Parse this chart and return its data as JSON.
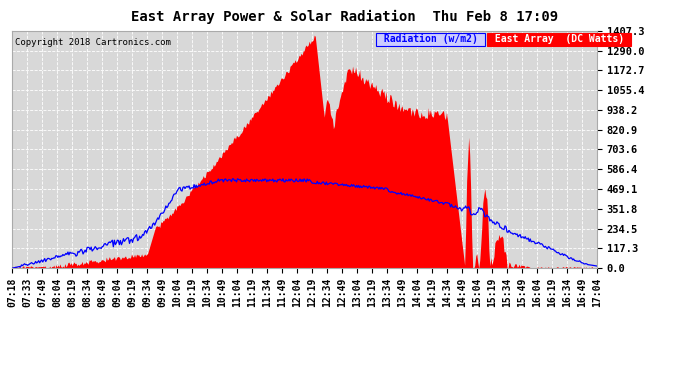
{
  "title": "East Array Power & Solar Radiation  Thu Feb 8 17:09",
  "copyright": "Copyright 2018 Cartronics.com",
  "y_ticks": [
    0.0,
    117.3,
    234.5,
    351.8,
    469.1,
    586.4,
    703.6,
    820.9,
    938.2,
    1055.4,
    1172.7,
    1290.0,
    1407.3
  ],
  "ylim": [
    0,
    1407.3
  ],
  "background_color": "#ffffff",
  "plot_bg_color": "#d8d8d8",
  "grid_color": "#ffffff",
  "x_tick_labels": [
    "07:18",
    "07:33",
    "07:49",
    "08:04",
    "08:19",
    "08:34",
    "08:49",
    "09:04",
    "09:19",
    "09:34",
    "09:49",
    "10:04",
    "10:19",
    "10:34",
    "10:49",
    "11:04",
    "11:19",
    "11:34",
    "11:49",
    "12:04",
    "12:19",
    "12:34",
    "12:49",
    "13:04",
    "13:19",
    "13:34",
    "13:49",
    "14:04",
    "14:19",
    "14:34",
    "14:49",
    "15:04",
    "15:19",
    "15:34",
    "15:49",
    "16:04",
    "16:19",
    "16:34",
    "16:49",
    "17:04"
  ],
  "n_ticks": 40,
  "n_points": 580,
  "x_range": [
    0,
    39
  ],
  "red_seed": 10,
  "blue_seed": 7,
  "legend_radiation_label": "Radiation (w/m2)",
  "legend_east_label": "East Array  (DC Watts)",
  "title_fontsize": 10,
  "copyright_fontsize": 6.5,
  "tick_fontsize": 7,
  "ytick_fontsize": 7.5
}
